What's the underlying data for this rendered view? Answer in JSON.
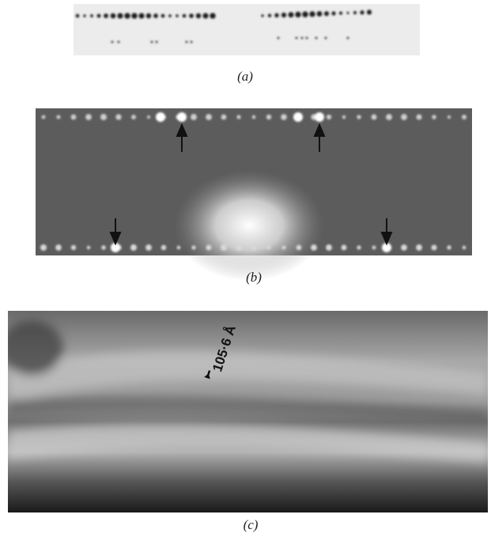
{
  "panels": [
    {
      "label": "(a)"
    },
    {
      "label": "(b)"
    },
    {
      "label": "(c)",
      "annotation": "105·6 Å"
    }
  ]
}
